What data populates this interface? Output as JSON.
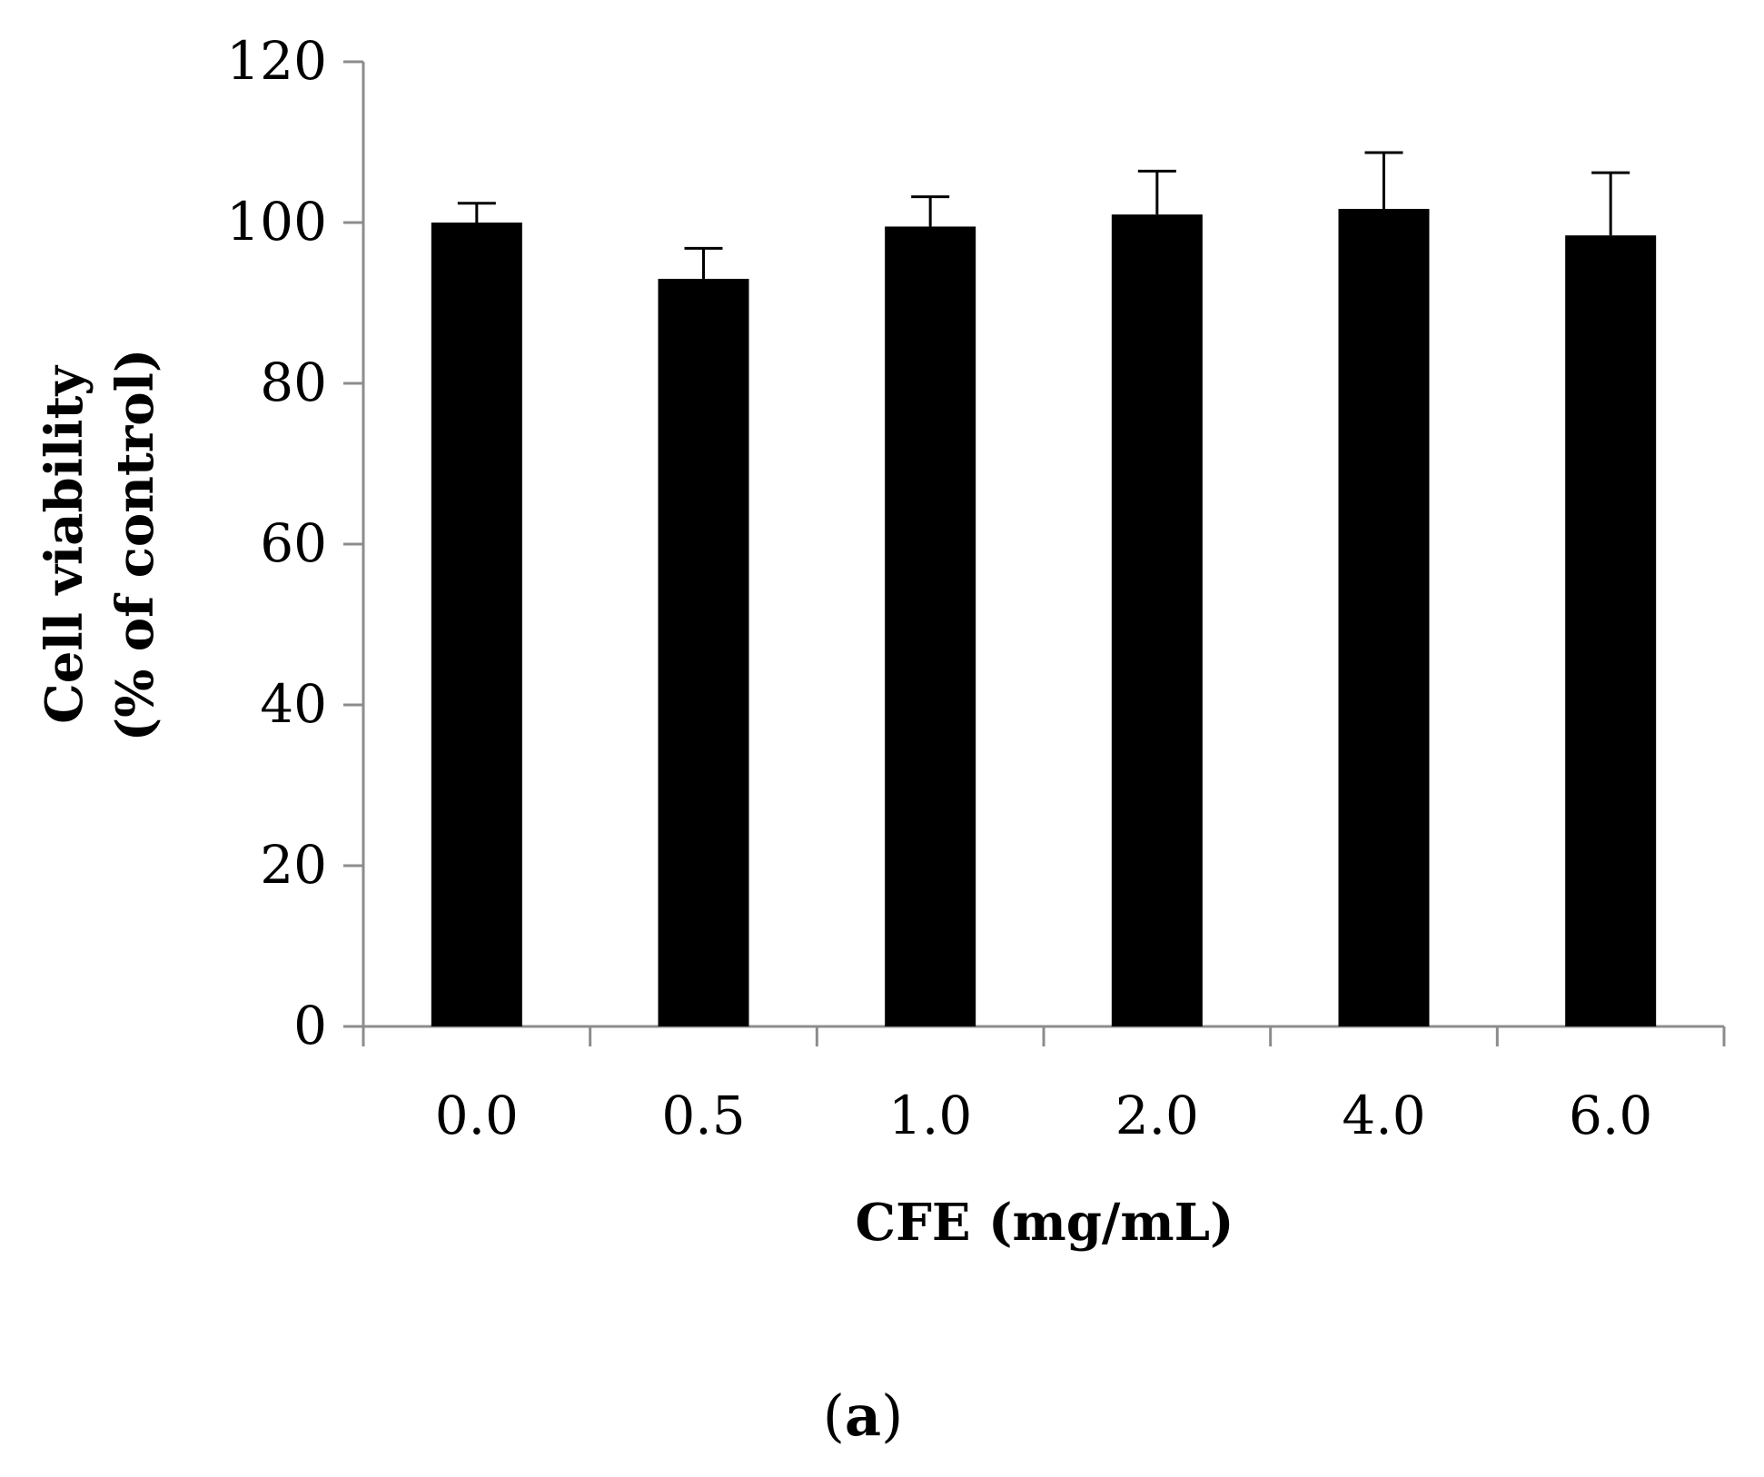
{
  "chart_data": {
    "type": "bar",
    "title": "",
    "xlabel": "CFE (mg/mL)",
    "ylabel_line1": "Cell viability",
    "ylabel_line2": "(% of control)",
    "categories": [
      "0.0",
      "0.5",
      "1.0",
      "2.0",
      "4.0",
      "6.0"
    ],
    "values": [
      100,
      93,
      99.5,
      101,
      101.7,
      98.4
    ],
    "errors": [
      2.4,
      3.8,
      3.7,
      5.4,
      7.0,
      7.8
    ],
    "ylim": [
      0,
      120
    ],
    "yticks": [
      "0",
      "20",
      "40",
      "60",
      "80",
      "100",
      "120"
    ],
    "grid": false,
    "legend": "none",
    "colors": {
      "bar": "#000000",
      "axis": "#8c8c8c",
      "error": "#000000"
    }
  },
  "panel_label": {
    "open": "(",
    "letter": "a",
    "close": ")"
  }
}
